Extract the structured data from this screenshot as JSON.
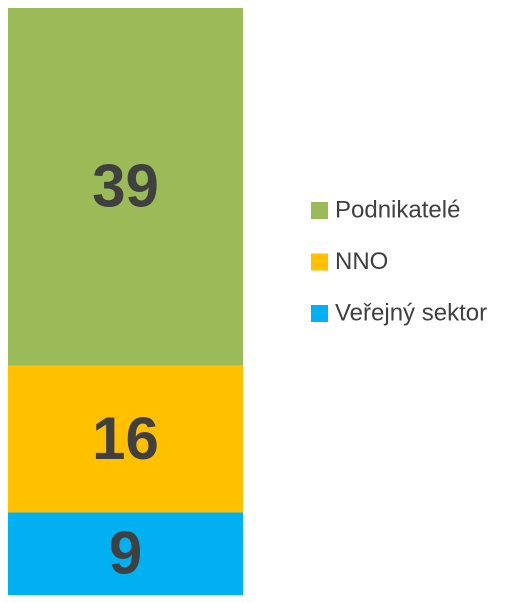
{
  "chart_data": {
    "type": "stacked-bar",
    "series": [
      {
        "name": "Podnikatelé",
        "color": "#9bbb59",
        "values": [
          39
        ]
      },
      {
        "name": "NNO",
        "color": "#ffc000",
        "values": [
          16
        ]
      },
      {
        "name": "Veřejný sektor",
        "color": "#00b0f0",
        "values": [
          9
        ]
      }
    ],
    "legend": "right"
  }
}
